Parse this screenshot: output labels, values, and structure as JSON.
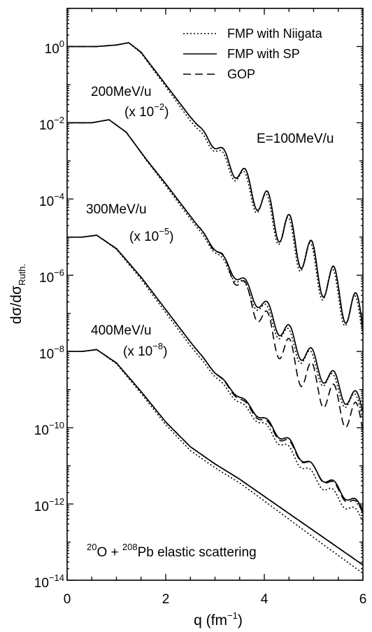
{
  "chart_data": {
    "type": "line",
    "xlabel": "q (fm",
    "xlabel_sup": "−1",
    "xlabel_end": ")",
    "ylabel": "dσ/dσ",
    "ylabel_sub": "Ruth.",
    "xlim": [
      0,
      6
    ],
    "ylim_log10": [
      -14,
      1
    ],
    "y_scale": "log",
    "x_ticks": [
      "0",
      "2",
      "4",
      "6"
    ],
    "y_ticks": [
      {
        "base": "10",
        "exp": "0"
      },
      {
        "base": "10",
        "exp": "−2"
      },
      {
        "base": "10",
        "exp": "−4"
      },
      {
        "base": "10",
        "exp": "−6"
      },
      {
        "base": "10",
        "exp": "−8"
      },
      {
        "base": "10",
        "exp": "−10"
      },
      {
        "base": "10",
        "exp": "−12"
      },
      {
        "base": "10",
        "exp": "−14"
      }
    ],
    "legend": {
      "position": "top-right",
      "entries": [
        {
          "name": "FMP with Niigata",
          "dash": "dotted"
        },
        {
          "name": "FMP with SP",
          "dash": "solid"
        },
        {
          "name": "GOP",
          "dash": "dashed"
        }
      ]
    },
    "annotations": {
      "e100": "E=100MeV/u",
      "e200": "200MeV/u",
      "scale200_pre": "(x 10",
      "scale200_exp": "−2",
      "e300": "300MeV/u",
      "scale300_pre": "(x 10",
      "scale300_exp": "−5",
      "e400": "400MeV/u",
      "scale400_pre": "(x 10",
      "scale400_exp": "−8",
      "reaction_sup1": "20",
      "reaction_mid": "O + ",
      "reaction_sup2": "208",
      "reaction_end": "Pb elastic scattering"
    },
    "curves": [
      {
        "energy": "100MeV/u",
        "scale_log10": 0,
        "x": [
          0.0,
          0.6,
          1.0,
          1.25,
          1.5,
          2.0,
          2.5,
          3.0,
          3.3,
          3.6,
          3.9,
          4.2,
          4.5,
          4.8,
          5.1,
          5.4,
          5.7,
          6.0
        ],
        "sp": [
          0.0,
          0.0,
          0.04,
          0.1,
          -0.15,
          -1.0,
          -1.85,
          -2.6,
          -3.05,
          -3.5,
          -4.0,
          -4.45,
          -4.95,
          -5.35,
          -5.9,
          -6.3,
          -6.8,
          -7.2
        ],
        "niigata": [
          0.0,
          0.0,
          0.04,
          0.1,
          -0.17,
          -1.05,
          -1.95,
          -2.7,
          -3.15,
          -3.6,
          -4.1,
          -4.55,
          -5.05,
          -5.45,
          -6.0,
          -6.4,
          -6.9,
          -7.3
        ],
        "gop": [
          0.0,
          0.0,
          0.04,
          0.1,
          -0.15,
          -1.0,
          -1.85,
          -2.6,
          -3.05,
          -3.5,
          -4.0,
          -4.45,
          -4.95,
          -5.35,
          -5.9,
          -6.3,
          -6.8,
          -7.2
        ]
      },
      {
        "energy": "200MeV/u",
        "scale_log10": -2,
        "x": [
          0.0,
          0.5,
          0.85,
          1.2,
          1.6,
          2.0,
          2.5,
          3.0,
          3.3,
          3.6,
          3.9,
          4.2,
          4.5,
          4.8,
          5.1,
          5.4,
          5.7,
          6.0
        ],
        "sp": [
          -2.0,
          -2.0,
          -1.92,
          -2.25,
          -2.95,
          -3.6,
          -4.45,
          -5.3,
          -5.8,
          -6.25,
          -6.7,
          -7.15,
          -7.6,
          -8.0,
          -8.4,
          -8.8,
          -9.15,
          -9.5
        ],
        "niigata": [
          -2.0,
          -2.0,
          -1.92,
          -2.25,
          -2.97,
          -3.65,
          -4.52,
          -5.38,
          -5.88,
          -6.35,
          -6.8,
          -7.25,
          -7.72,
          -8.1,
          -8.5,
          -8.9,
          -9.25,
          -9.6
        ],
        "gop": [
          -2.0,
          -2.0,
          -1.92,
          -2.25,
          -2.95,
          -3.6,
          -4.45,
          -5.3,
          -5.85,
          -6.4,
          -7.0,
          -7.6,
          -8.1,
          -8.55,
          -8.9,
          -9.3,
          -9.6,
          -9.95
        ]
      },
      {
        "energy": "300MeV/u",
        "scale_log10": -5,
        "x": [
          0.0,
          0.3,
          0.6,
          1.0,
          1.5,
          2.0,
          2.5,
          3.0,
          3.5,
          4.0,
          4.5,
          5.0,
          5.5,
          6.0
        ],
        "sp": [
          -5.0,
          -5.0,
          -4.95,
          -5.3,
          -6.05,
          -6.9,
          -7.75,
          -8.55,
          -9.2,
          -9.8,
          -10.4,
          -11.1,
          -11.6,
          -12.15
        ],
        "niigata": [
          -5.0,
          -5.0,
          -4.95,
          -5.32,
          -6.1,
          -6.98,
          -7.85,
          -8.65,
          -9.35,
          -9.95,
          -10.6,
          -11.3,
          -11.85,
          -12.4
        ],
        "gop": [
          -5.0,
          -5.0,
          -4.95,
          -5.3,
          -6.05,
          -6.9,
          -7.75,
          -8.55,
          -9.25,
          -9.85,
          -10.45,
          -11.1,
          -11.65,
          -12.2
        ]
      },
      {
        "energy": "400MeV/u",
        "scale_log10": -8,
        "x": [
          0.0,
          0.3,
          0.6,
          1.0,
          1.5,
          2.0,
          2.5,
          3.0,
          3.5,
          4.0,
          4.5,
          5.0,
          5.5,
          6.0
        ],
        "sp": [
          -8.0,
          -8.0,
          -7.95,
          -8.3,
          -9.05,
          -9.85,
          -10.5,
          -10.95,
          -11.35,
          -11.8,
          -12.25,
          -12.7,
          -13.15,
          -13.6
        ],
        "niigata": [
          -8.0,
          -8.0,
          -7.95,
          -8.32,
          -9.1,
          -9.92,
          -10.6,
          -11.05,
          -11.45,
          -11.92,
          -12.4,
          -12.88,
          -13.35,
          -13.82
        ],
        "gop": [
          -8.0,
          -8.0,
          -7.95,
          -8.3,
          -9.05,
          -9.85,
          -10.5,
          -10.95,
          -11.35,
          -11.8,
          -12.25,
          -12.7,
          -13.15,
          -13.6
        ]
      }
    ]
  }
}
